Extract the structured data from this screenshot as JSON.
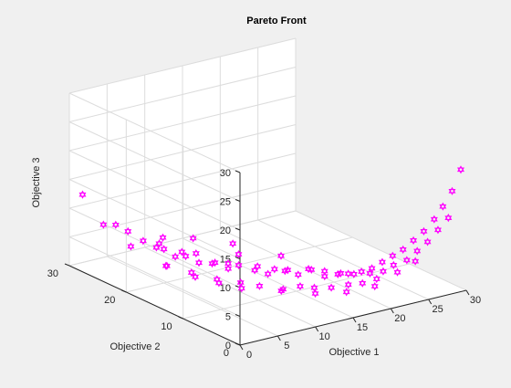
{
  "chart_data": {
    "type": "scatter3d",
    "title": "Pareto Front",
    "xlabel": "Objective 1",
    "ylabel": "Objective 2",
    "zlabel": "Objective 3",
    "xlim": [
      0,
      30
    ],
    "ylim": [
      0,
      30
    ],
    "zlim": [
      0,
      30
    ],
    "xticks": [
      "0",
      "5",
      "10",
      "15",
      "20",
      "25",
      "30"
    ],
    "yticks": [
      "0",
      "10",
      "20",
      "30"
    ],
    "zticks": [
      "0",
      "5",
      "10",
      "15",
      "20",
      "25",
      "30"
    ],
    "grid": true,
    "marker": "hexagram",
    "marker_color": "#ff00ff",
    "series": [
      {
        "points": [
          [
            1.0,
            29.0,
            12.5
          ],
          [
            1.5,
            26.0,
            8.5
          ],
          [
            2.0,
            24.5,
            9.0
          ],
          [
            2.5,
            22.5,
            6.0
          ],
          [
            3.0,
            21.0,
            7.5
          ],
          [
            4.0,
            20.0,
            6.5
          ],
          [
            4.0,
            25.0,
            7.0
          ],
          [
            5.0,
            18.0,
            5.5
          ],
          [
            5.5,
            21.5,
            6.0
          ],
          [
            6.0,
            17.5,
            5.5
          ],
          [
            6.5,
            22.0,
            4.5
          ],
          [
            7.0,
            16.5,
            4.5
          ],
          [
            7.0,
            19.5,
            5.0
          ],
          [
            7.5,
            23.5,
            5.5
          ],
          [
            8.0,
            15.5,
            4.5
          ],
          [
            8.5,
            19.0,
            4.5
          ],
          [
            9.0,
            14.0,
            4.0
          ],
          [
            9.5,
            17.0,
            3.5
          ],
          [
            10.0,
            13.5,
            4.5
          ],
          [
            10.0,
            21.5,
            5.5
          ],
          [
            10.5,
            16.0,
            3.5
          ],
          [
            11.0,
            12.0,
            4.0
          ],
          [
            11.5,
            15.5,
            5.0
          ],
          [
            12.0,
            11.0,
            3.5
          ],
          [
            12.5,
            13.5,
            3.5
          ],
          [
            13.0,
            18.5,
            5.0
          ],
          [
            13.5,
            10.0,
            4.0
          ],
          [
            14.0,
            12.5,
            3.0
          ],
          [
            14.5,
            9.0,
            3.5
          ],
          [
            15.0,
            11.5,
            3.0
          ],
          [
            15.5,
            8.0,
            4.5
          ],
          [
            16.0,
            14.0,
            4.0
          ],
          [
            16.5,
            7.0,
            3.5
          ],
          [
            17.0,
            10.5,
            3.0
          ],
          [
            17.5,
            6.0,
            4.0
          ],
          [
            18.0,
            9.0,
            3.0
          ],
          [
            18.5,
            5.5,
            4.0
          ],
          [
            19.0,
            7.5,
            3.0
          ],
          [
            19.5,
            4.5,
            4.5
          ],
          [
            20.0,
            6.5,
            3.0
          ],
          [
            20.5,
            4.0,
            5.0
          ],
          [
            21.0,
            5.0,
            3.5
          ],
          [
            21.5,
            3.5,
            6.0
          ],
          [
            22.0,
            4.0,
            4.0
          ],
          [
            22.5,
            3.0,
            7.0
          ],
          [
            23.0,
            3.5,
            5.0
          ],
          [
            23.5,
            2.5,
            8.0
          ],
          [
            24.0,
            2.5,
            6.0
          ],
          [
            24.5,
            2.0,
            9.5
          ],
          [
            25.0,
            2.0,
            7.5
          ],
          [
            25.5,
            1.5,
            11.0
          ],
          [
            26.0,
            1.5,
            9.0
          ],
          [
            26.5,
            1.0,
            13.0
          ],
          [
            27.0,
            1.0,
            11.0
          ],
          [
            27.5,
            0.8,
            15.0
          ],
          [
            28.0,
            0.5,
            13.0
          ],
          [
            28.5,
            0.5,
            17.5
          ],
          [
            29.5,
            0.3,
            21.0
          ],
          [
            6.0,
            12.0,
            4.0
          ],
          [
            8.0,
            10.5,
            3.5
          ],
          [
            9.0,
            8.5,
            3.5
          ],
          [
            11.0,
            7.0,
            3.0
          ],
          [
            12.5,
            6.0,
            3.5
          ],
          [
            14.0,
            5.5,
            3.0
          ],
          [
            15.5,
            4.5,
            3.0
          ],
          [
            17.0,
            3.5,
            3.5
          ],
          [
            18.5,
            3.0,
            3.5
          ],
          [
            20.0,
            2.5,
            4.0
          ],
          [
            3.0,
            17.0,
            5.0
          ],
          [
            4.5,
            14.5,
            4.5
          ],
          [
            5.5,
            11.0,
            4.0
          ],
          [
            7.0,
            9.0,
            3.5
          ],
          [
            10.0,
            6.0,
            3.5
          ],
          [
            13.0,
            4.0,
            3.0
          ],
          [
            16.0,
            2.5,
            3.0
          ],
          [
            19.0,
            1.5,
            3.5
          ],
          [
            2.0,
            15.5,
            6.0
          ],
          [
            3.5,
            12.5,
            5.0
          ],
          [
            22.0,
            1.5,
            5.0
          ],
          [
            24.0,
            1.0,
            6.5
          ]
        ]
      }
    ]
  }
}
